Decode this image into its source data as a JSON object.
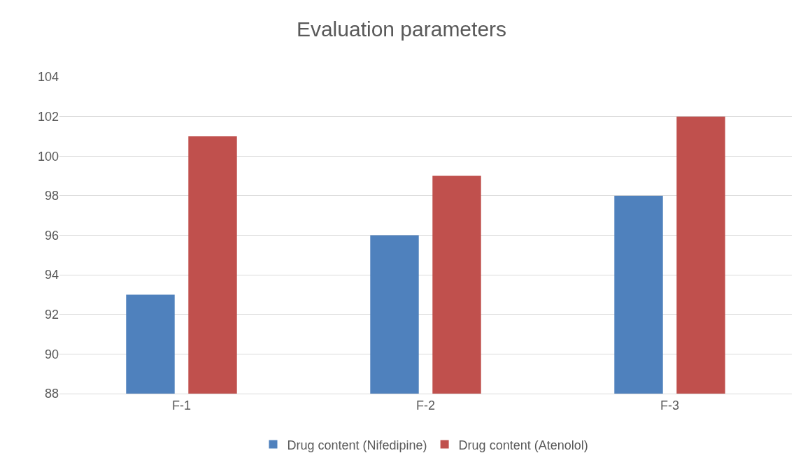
{
  "chart_data": {
    "type": "bar",
    "title": "Evaluation parameters",
    "categories": [
      "F-1",
      "F-2",
      "F-3"
    ],
    "series": [
      {
        "name": "Drug content (Nifedipine)",
        "color": "#4f81bd",
        "values": [
          93,
          96,
          98
        ]
      },
      {
        "name": "Drug content (Atenolol)",
        "color": "#c0504d",
        "values": [
          101,
          99,
          102
        ]
      }
    ],
    "ylim": [
      88,
      104
    ],
    "yticks": [
      88,
      90,
      92,
      94,
      96,
      98,
      100,
      102,
      104
    ],
    "grid": "y",
    "legend": "bottom"
  }
}
